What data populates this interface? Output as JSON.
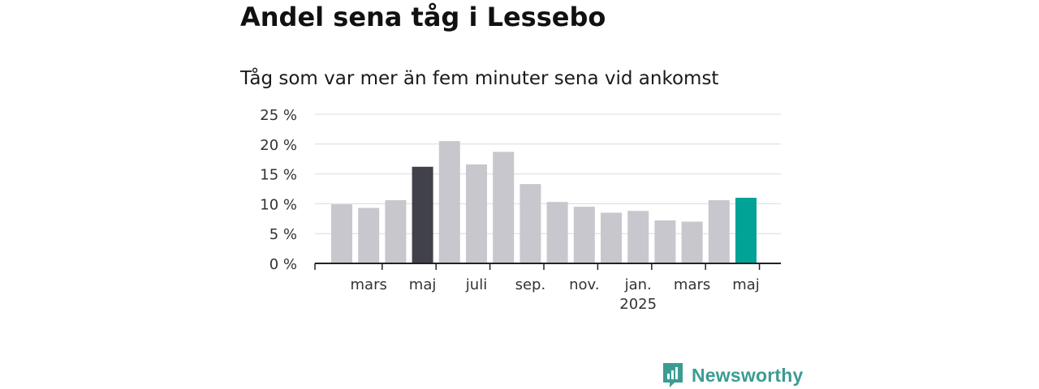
{
  "chart_data": {
    "type": "bar",
    "title": "Andel sena tåg i Lessebo",
    "subtitle": "Tåg som var mer än fem minuter sena vid ankomst",
    "ylim": [
      0,
      25
    ],
    "yticks": [
      0,
      5,
      10,
      15,
      20,
      25
    ],
    "ytick_labels": [
      "0 %",
      "5 %",
      "10 %",
      "15 %",
      "20 %",
      "25 %"
    ],
    "values": [
      9.9,
      9.3,
      10.6,
      16.2,
      20.5,
      16.6,
      18.7,
      13.3,
      10.3,
      9.5,
      8.5,
      8.8,
      7.2,
      7.0,
      10.6,
      11.0
    ],
    "highlight": {
      "3": "#41414b",
      "15": "#00a396"
    },
    "bar_color": "#c8c7cd",
    "xtick_labels": [
      {
        "bar": 1.5,
        "label": "mars",
        "sub": ""
      },
      {
        "bar": 3.5,
        "label": "maj",
        "sub": ""
      },
      {
        "bar": 5.5,
        "label": "juli",
        "sub": ""
      },
      {
        "bar": 7.5,
        "label": "sep.",
        "sub": ""
      },
      {
        "bar": 9.5,
        "label": "nov.",
        "sub": ""
      },
      {
        "bar": 11.5,
        "label": "jan.",
        "sub": "2025"
      },
      {
        "bar": 13.5,
        "label": "mars",
        "sub": ""
      },
      {
        "bar": 15.5,
        "label": "maj",
        "sub": ""
      }
    ],
    "grid": true
  },
  "brand": {
    "name": "Newsworthy",
    "color": "#3b9c92",
    "icon": "newsworthy-logo-icon"
  }
}
